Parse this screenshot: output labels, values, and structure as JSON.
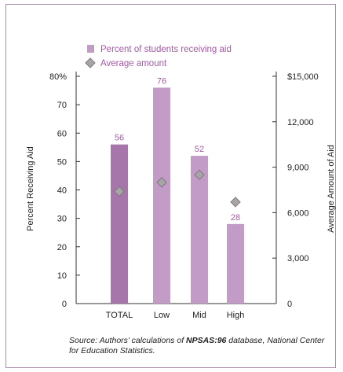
{
  "chart_data": {
    "type": "bar",
    "title": "",
    "categories": [
      "TOTAL",
      "Low",
      "Mid",
      "High"
    ],
    "series": [
      {
        "name": "Percent of students receiving aid",
        "axis": "left",
        "values": [
          56,
          76,
          52,
          28
        ],
        "data_labels": [
          "56",
          "76",
          "52",
          "28"
        ],
        "colors": [
          "#a675a9",
          "#c39bc7",
          "#c39bc7",
          "#c39bc7"
        ]
      },
      {
        "name": "Average amount",
        "axis": "right",
        "marker": "diamond",
        "values": [
          7400,
          8000,
          8500,
          6700
        ],
        "color": "#a9a4a7"
      }
    ],
    "ylabel_left": "Percent Receiving Aid",
    "ylabel_right": "Average Amount of Aid",
    "ylim_left": [
      0,
      80
    ],
    "ylim_right": [
      0,
      15000
    ],
    "yticks_left": [
      "0",
      "10",
      "20",
      "30",
      "40",
      "50",
      "60",
      "70",
      "80%"
    ],
    "yticks_right": [
      "0",
      "3,000",
      "6,000",
      "9,000",
      "12,000",
      "$15,000"
    ],
    "legend_position": "top-center",
    "grid": false
  },
  "source": {
    "prefix": "Source:  Authors’ calculations of ",
    "dataset": "NPSAS:96",
    "suffix": " database, National Center for Education Statistics."
  },
  "colors": {
    "frame": "#a98aa8",
    "axis": "#333333",
    "bar_total": "#a675a9",
    "bar_other": "#c39bc7",
    "label": "#a45aa6",
    "diamond_fill": "#a9a4a7",
    "diamond_stroke": "#7f7a7d"
  }
}
